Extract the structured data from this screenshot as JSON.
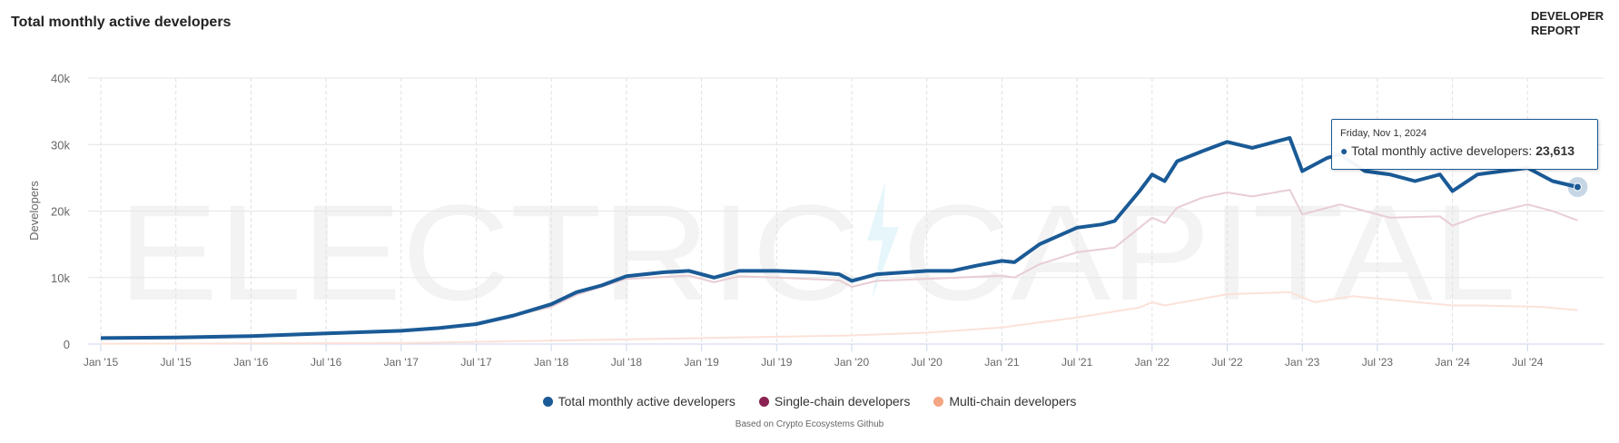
{
  "header": {
    "title": "Total monthly active developers",
    "brand_line1": "DEVELOPER",
    "brand_line2": "REPORT"
  },
  "watermark": "ELECTRIC CAPITAL",
  "footer": "Based on Crypto Ecosystems Github",
  "tooltip": {
    "date": "Friday, Nov 1, 2024",
    "series": "Total monthly active developers: ",
    "value": "23,613"
  },
  "chart_data": {
    "type": "line",
    "title": "Total monthly active developers",
    "xlabel": "",
    "ylabel": "Developers",
    "ylim": [
      0,
      40000
    ],
    "yticks": [
      "0",
      "10k",
      "20k",
      "30k",
      "40k"
    ],
    "ytick_values": [
      0,
      10000,
      20000,
      30000,
      40000
    ],
    "xticks": [
      "Jan '15",
      "Jul '15",
      "Jan '16",
      "Jul '16",
      "Jan '17",
      "Jul '17",
      "Jan '18",
      "Jul '18",
      "Jan '19",
      "Jul '19",
      "Jan '20",
      "Jul '20",
      "Jan '21",
      "Jul '21",
      "Jan '22",
      "Jul '22",
      "Jan '23",
      "Jul '23",
      "Jan '24",
      "Jul '24"
    ],
    "xtick_dates": [
      "2015-01",
      "2015-07",
      "2016-01",
      "2016-07",
      "2017-01",
      "2017-07",
      "2018-01",
      "2018-07",
      "2019-01",
      "2019-07",
      "2020-01",
      "2020-07",
      "2021-01",
      "2021-07",
      "2022-01",
      "2022-07",
      "2023-01",
      "2023-07",
      "2024-01",
      "2024-07"
    ],
    "grid": true,
    "legend": "bottom",
    "series": [
      {
        "name": "Total monthly active developers",
        "color": "#1a5a96",
        "line_color": "#1a5a96",
        "points": [
          [
            "2015-01",
            900
          ],
          [
            "2015-07",
            1000
          ],
          [
            "2016-01",
            1200
          ],
          [
            "2016-07",
            1600
          ],
          [
            "2017-01",
            2000
          ],
          [
            "2017-04",
            2400
          ],
          [
            "2017-07",
            3000
          ],
          [
            "2017-10",
            4300
          ],
          [
            "2018-01",
            6000
          ],
          [
            "2018-03",
            7800
          ],
          [
            "2018-05",
            8800
          ],
          [
            "2018-07",
            10200
          ],
          [
            "2018-10",
            10800
          ],
          [
            "2018-12",
            11000
          ],
          [
            "2019-02",
            10000
          ],
          [
            "2019-04",
            11000
          ],
          [
            "2019-07",
            11000
          ],
          [
            "2019-10",
            10800
          ],
          [
            "2019-12",
            10500
          ],
          [
            "2020-01",
            9500
          ],
          [
            "2020-03",
            10500
          ],
          [
            "2020-07",
            11000
          ],
          [
            "2020-09",
            11000
          ],
          [
            "2020-11",
            11800
          ],
          [
            "2021-01",
            12500
          ],
          [
            "2021-02",
            12300
          ],
          [
            "2021-04",
            15000
          ],
          [
            "2021-07",
            17500
          ],
          [
            "2021-09",
            18000
          ],
          [
            "2021-10",
            18500
          ],
          [
            "2021-12",
            23000
          ],
          [
            "2022-01",
            25500
          ],
          [
            "2022-02",
            24500
          ],
          [
            "2022-03",
            27500
          ],
          [
            "2022-05",
            29000
          ],
          [
            "2022-07",
            30400
          ],
          [
            "2022-09",
            29500
          ],
          [
            "2022-11",
            30500
          ],
          [
            "2022-12",
            31000
          ],
          [
            "2023-01",
            26000
          ],
          [
            "2023-03",
            28000
          ],
          [
            "2023-04",
            28500
          ],
          [
            "2023-06",
            26000
          ],
          [
            "2023-08",
            25500
          ],
          [
            "2023-10",
            24500
          ],
          [
            "2023-12",
            25500
          ],
          [
            "2024-01",
            23000
          ],
          [
            "2024-03",
            25500
          ],
          [
            "2024-05",
            26000
          ],
          [
            "2024-07",
            26500
          ],
          [
            "2024-09",
            24500
          ],
          [
            "2024-11",
            23613
          ]
        ]
      },
      {
        "name": "Single-chain developers",
        "color": "#8b2252",
        "line_color": "#e8cdd4",
        "points": [
          [
            "2015-01",
            800
          ],
          [
            "2016-01",
            1100
          ],
          [
            "2017-01",
            1900
          ],
          [
            "2017-07",
            2900
          ],
          [
            "2018-01",
            5600
          ],
          [
            "2018-03",
            7400
          ],
          [
            "2018-07",
            9800
          ],
          [
            "2018-12",
            10300
          ],
          [
            "2019-02",
            9300
          ],
          [
            "2019-04",
            10200
          ],
          [
            "2019-07",
            10000
          ],
          [
            "2019-12",
            9600
          ],
          [
            "2020-01",
            8600
          ],
          [
            "2020-03",
            9500
          ],
          [
            "2020-07",
            9800
          ],
          [
            "2021-01",
            10300
          ],
          [
            "2021-02",
            10000
          ],
          [
            "2021-04",
            12000
          ],
          [
            "2021-07",
            13800
          ],
          [
            "2021-10",
            14500
          ],
          [
            "2021-12",
            17500
          ],
          [
            "2022-01",
            19000
          ],
          [
            "2022-02",
            18200
          ],
          [
            "2022-03",
            20500
          ],
          [
            "2022-05",
            22000
          ],
          [
            "2022-07",
            22800
          ],
          [
            "2022-09",
            22200
          ],
          [
            "2022-12",
            23200
          ],
          [
            "2023-01",
            19500
          ],
          [
            "2023-04",
            21000
          ],
          [
            "2023-08",
            19000
          ],
          [
            "2023-12",
            19200
          ],
          [
            "2024-01",
            17800
          ],
          [
            "2024-03",
            19200
          ],
          [
            "2024-07",
            21000
          ],
          [
            "2024-09",
            20000
          ],
          [
            "2024-11",
            18600
          ]
        ]
      },
      {
        "name": "Multi-chain developers",
        "color": "#f4a582",
        "line_color": "#fbe2d8",
        "points": [
          [
            "2015-01",
            50
          ],
          [
            "2016-01",
            100
          ],
          [
            "2017-01",
            150
          ],
          [
            "2018-01",
            500
          ],
          [
            "2019-01",
            900
          ],
          [
            "2020-01",
            1300
          ],
          [
            "2020-07",
            1700
          ],
          [
            "2021-01",
            2500
          ],
          [
            "2021-07",
            4000
          ],
          [
            "2021-12",
            5500
          ],
          [
            "2022-01",
            6300
          ],
          [
            "2022-02",
            5800
          ],
          [
            "2022-07",
            7500
          ],
          [
            "2022-12",
            7800
          ],
          [
            "2023-02",
            6300
          ],
          [
            "2023-05",
            7200
          ],
          [
            "2023-09",
            6500
          ],
          [
            "2024-01",
            5800
          ],
          [
            "2024-03",
            5800
          ],
          [
            "2024-08",
            5600
          ],
          [
            "2024-11",
            5100
          ]
        ]
      }
    ]
  }
}
